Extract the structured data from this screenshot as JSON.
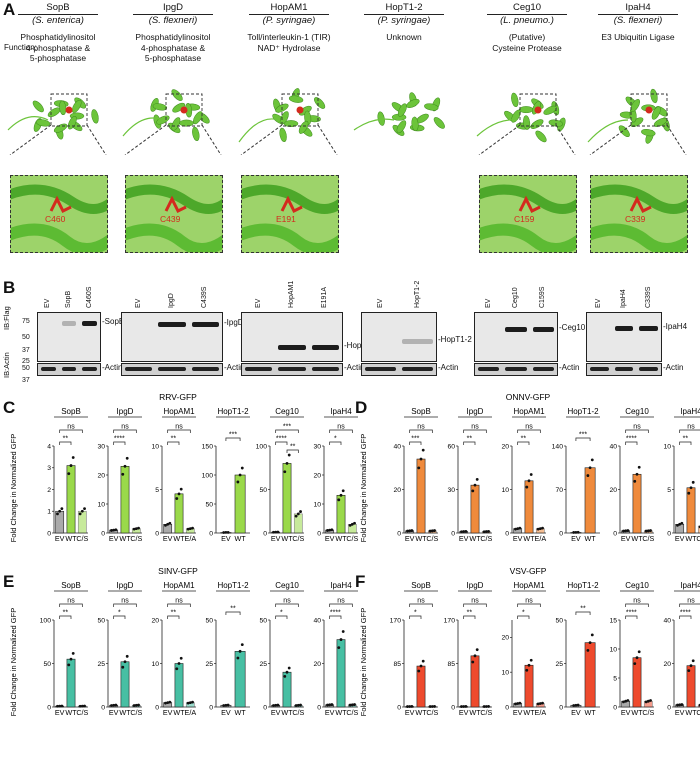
{
  "panel_letters": {
    "A": "A",
    "B": "B",
    "C": "C",
    "D": "D",
    "E": "E",
    "F": "F"
  },
  "panel_a": {
    "function_label": "Function:",
    "proteins": [
      {
        "name": "SopB",
        "organism": "(S. enterica)",
        "function": [
          "Phosphatidylinositol",
          "4-phosphatase &",
          "5-phosphatase"
        ],
        "residue": "C460"
      },
      {
        "name": "IpgD",
        "organism": "(S. flexneri)",
        "function": [
          "Phosphatidylinositol",
          "4-phosphatase &",
          "5-phosphatase"
        ],
        "residue": "C439"
      },
      {
        "name": "HopAM1",
        "organism": "(P. syringae)",
        "function": [
          "Toll/interleukin-1 (TIR)",
          "NAD⁺ Hydrolase"
        ],
        "residue": "E191"
      },
      {
        "name": "HopT1-2",
        "organism": "(P. syringae)",
        "function": [
          "Unknown"
        ],
        "residue": ""
      },
      {
        "name": "Ceg10",
        "organism": "(L. pneumo.)",
        "function": [
          "(Putative)",
          "Cysteine Protease"
        ],
        "residue": "C159"
      },
      {
        "name": "IpaH4",
        "organism": "(S. flexneri)",
        "function": [
          "E3 Ubiquitin Ligase"
        ],
        "residue": "C339"
      }
    ],
    "colors": {
      "structure": "#6cc43a",
      "active_site": "#d42a1e"
    }
  },
  "panel_b": {
    "ib_flag": "IB:Flag",
    "ib_actin": "IB:Actin",
    "mw_flag": [
      "75",
      "50",
      "37",
      "25"
    ],
    "mw_actin": [
      "50",
      "37"
    ],
    "blots": [
      {
        "lanes": [
          "EV",
          "SopB",
          "C460S"
        ],
        "band": "SopB",
        "actin": "Actin"
      },
      {
        "lanes": [
          "EV",
          "IpgD",
          "C439S"
        ],
        "band": "IpgD",
        "actin": "Actin"
      },
      {
        "lanes": [
          "EV",
          "HopAM1",
          "E191A"
        ],
        "band": "HopAM1",
        "actin": "Actin"
      },
      {
        "lanes": [
          "EV",
          "HopT1-2"
        ],
        "band": "HopT1-2",
        "actin": "Actin"
      },
      {
        "lanes": [
          "EV",
          "Ceg10",
          "C159S"
        ],
        "band": "Ceg10",
        "actin": "Actin"
      },
      {
        "lanes": [
          "EV",
          "IpaH4",
          "C339S"
        ],
        "band": "IpaH4",
        "actin": "Actin"
      }
    ]
  },
  "y_axis_label": "Fold Change in Normalized GFP",
  "chart_data": [
    {
      "type": "bar",
      "panel": "C",
      "title": "RRV-GFP",
      "color": "#9ad94a",
      "subplots": [
        {
          "name": "SopB",
          "categories": [
            "EV",
            "WT",
            "C/S"
          ],
          "values": [
            1,
            3.1,
            1.0
          ],
          "ylim": [
            0,
            4
          ],
          "yticks": [
            "0",
            "1",
            "2",
            "3",
            "4"
          ],
          "sig": [
            "**",
            "ns"
          ]
        },
        {
          "name": "IpgD",
          "categories": [
            "EV",
            "WT",
            "C/S"
          ],
          "values": [
            1,
            23,
            1.5
          ],
          "ylim": [
            0,
            30
          ],
          "yticks": [
            "0",
            "10",
            "20",
            "30"
          ],
          "sig": [
            "****",
            "ns"
          ]
        },
        {
          "name": "HopAM1",
          "categories": [
            "EV",
            "WT",
            "E/A"
          ],
          "values": [
            1,
            4.5,
            0.5
          ],
          "ylim": [
            0,
            10
          ],
          "yticks": [
            "0",
            "5",
            "10"
          ],
          "sig": [
            "**",
            "ns"
          ]
        },
        {
          "name": "HopT1-2",
          "categories": [
            "EV",
            "WT"
          ],
          "values": [
            1,
            100
          ],
          "ylim": [
            0,
            150
          ],
          "yticks": [
            "0",
            "50",
            "100",
            "150"
          ],
          "sig": [
            "***"
          ]
        },
        {
          "name": "Ceg10",
          "categories": [
            "EV",
            "WT",
            "C/S"
          ],
          "values": [
            1,
            80,
            22
          ],
          "ylim": [
            0,
            100
          ],
          "yticks": [
            "0",
            "50",
            "100"
          ],
          "sig": [
            "****",
            "***",
            "**"
          ]
        },
        {
          "name": "IpaH4",
          "categories": [
            "EV",
            "WT",
            "C/S"
          ],
          "values": [
            1,
            13,
            3
          ],
          "ylim": [
            0,
            30
          ],
          "yticks": [
            "0",
            "10",
            "20",
            "30"
          ],
          "sig": [
            "*",
            "ns"
          ]
        }
      ]
    },
    {
      "type": "bar",
      "panel": "D",
      "title": "ONNV-GFP",
      "color": "#ef8a3c",
      "subplots": [
        {
          "name": "SopB",
          "categories": [
            "EV",
            "WT",
            "C/S"
          ],
          "values": [
            1,
            34,
            1
          ],
          "ylim": [
            0,
            40
          ],
          "yticks": [
            "0",
            "20",
            "40"
          ],
          "sig": [
            "***",
            "ns"
          ]
        },
        {
          "name": "IpgD",
          "categories": [
            "EV",
            "WT",
            "C/S"
          ],
          "values": [
            1,
            33,
            1
          ],
          "ylim": [
            0,
            60
          ],
          "yticks": [
            "0",
            "30",
            "60"
          ],
          "sig": [
            "**",
            "ns"
          ]
        },
        {
          "name": "HopAM1",
          "categories": [
            "EV",
            "WT",
            "E/A"
          ],
          "values": [
            1,
            12,
            1
          ],
          "ylim": [
            0,
            20
          ],
          "yticks": [
            "0",
            "10",
            "20"
          ],
          "sig": [
            "**",
            "ns"
          ]
        },
        {
          "name": "HopT1-2",
          "categories": [
            "EV",
            "WT"
          ],
          "values": [
            1,
            105
          ],
          "ylim": [
            0,
            140
          ],
          "yticks": [
            "0",
            "70",
            "140"
          ],
          "sig": [
            "***"
          ]
        },
        {
          "name": "Ceg10",
          "categories": [
            "EV",
            "WT",
            "C/S"
          ],
          "values": [
            1,
            27,
            1
          ],
          "ylim": [
            0,
            40
          ],
          "yticks": [
            "0",
            "20",
            "40"
          ],
          "sig": [
            "****",
            "ns"
          ]
        },
        {
          "name": "IpaH4",
          "categories": [
            "EV",
            "WT",
            "C/S"
          ],
          "values": [
            1,
            5.2,
            0.8
          ],
          "ylim": [
            0,
            10
          ],
          "yticks": [
            "0",
            "5",
            "10"
          ],
          "sig": [
            "**",
            "ns"
          ]
        }
      ]
    },
    {
      "type": "bar",
      "panel": "E",
      "title": "SINV-GFP",
      "color": "#47bfa3",
      "subplots": [
        {
          "name": "SopB",
          "categories": [
            "EV",
            "WT",
            "C/S"
          ],
          "values": [
            1,
            55,
            1
          ],
          "ylim": [
            0,
            100
          ],
          "yticks": [
            "0",
            "50",
            "100"
          ],
          "sig": [
            "**",
            "ns"
          ]
        },
        {
          "name": "IpgD",
          "categories": [
            "EV",
            "WT",
            "C/S"
          ],
          "values": [
            1,
            26,
            1
          ],
          "ylim": [
            0,
            50
          ],
          "yticks": [
            "0",
            "25",
            "50"
          ],
          "sig": [
            "*",
            "ns"
          ]
        },
        {
          "name": "HopAM1",
          "categories": [
            "EV",
            "WT",
            "E/A"
          ],
          "values": [
            1,
            10,
            1
          ],
          "ylim": [
            0,
            20
          ],
          "yticks": [
            "0",
            "10",
            "20"
          ],
          "sig": [
            "**",
            "ns"
          ]
        },
        {
          "name": "HopT1-2",
          "categories": [
            "EV",
            "WT"
          ],
          "values": [
            1,
            32
          ],
          "ylim": [
            0,
            50
          ],
          "yticks": [
            "0",
            "25",
            "50"
          ],
          "sig": [
            "**"
          ]
        },
        {
          "name": "Ceg10",
          "categories": [
            "EV",
            "WT",
            "C/S"
          ],
          "values": [
            1,
            20,
            1
          ],
          "ylim": [
            0,
            50
          ],
          "yticks": [
            "0",
            "25",
            "50"
          ],
          "sig": [
            "*",
            "ns"
          ]
        },
        {
          "name": "IpaH4",
          "categories": [
            "EV",
            "WT",
            "C/S"
          ],
          "values": [
            1,
            31,
            1
          ],
          "ylim": [
            0,
            40
          ],
          "yticks": [
            "0",
            "20",
            "40"
          ],
          "sig": [
            "****",
            "ns"
          ]
        }
      ]
    },
    {
      "type": "bar",
      "panel": "F",
      "title": "VSV-GFP",
      "color": "#ee4a2d",
      "subplots": [
        {
          "name": "SopB",
          "categories": [
            "EV",
            "WT",
            "C/S"
          ],
          "values": [
            1,
            80,
            1
          ],
          "ylim": [
            0,
            170
          ],
          "yticks": [
            "0",
            "85",
            "170"
          ],
          "sig": [
            "*",
            "ns"
          ]
        },
        {
          "name": "IpgD",
          "categories": [
            "EV",
            "WT",
            "C/S"
          ],
          "values": [
            1,
            100,
            1
          ],
          "ylim": [
            0,
            170
          ],
          "yticks": [
            "0",
            "85",
            "170"
          ],
          "sig": [
            "**",
            "ns"
          ]
        },
        {
          "name": "HopAM1",
          "categories": [
            "EV",
            "WT",
            "E/A"
          ],
          "values": [
            1,
            12,
            1
          ],
          "ylim": [
            0,
            25
          ],
          "yticks": [
            "0",
            "10",
            "20"
          ],
          "sig": [
            "*",
            "ns"
          ]
        },
        {
          "name": "HopT1-2",
          "categories": [
            "EV",
            "WT"
          ],
          "values": [
            1,
            37
          ],
          "ylim": [
            0,
            50
          ],
          "yticks": [
            "0",
            "25",
            "50"
          ],
          "sig": [
            "**"
          ]
        },
        {
          "name": "Ceg10",
          "categories": [
            "EV",
            "WT",
            "C/S"
          ],
          "values": [
            1,
            8.5,
            1
          ],
          "ylim": [
            0,
            15
          ],
          "yticks": [
            "0",
            "5",
            "10",
            "15"
          ],
          "sig": [
            "****",
            "ns"
          ]
        },
        {
          "name": "IpaH4",
          "categories": [
            "EV",
            "WT",
            "C/S"
          ],
          "values": [
            1,
            19,
            1
          ],
          "ylim": [
            0,
            40
          ],
          "yticks": [
            "0",
            "20",
            "40"
          ],
          "sig": [
            "****",
            "ns"
          ]
        }
      ]
    }
  ]
}
